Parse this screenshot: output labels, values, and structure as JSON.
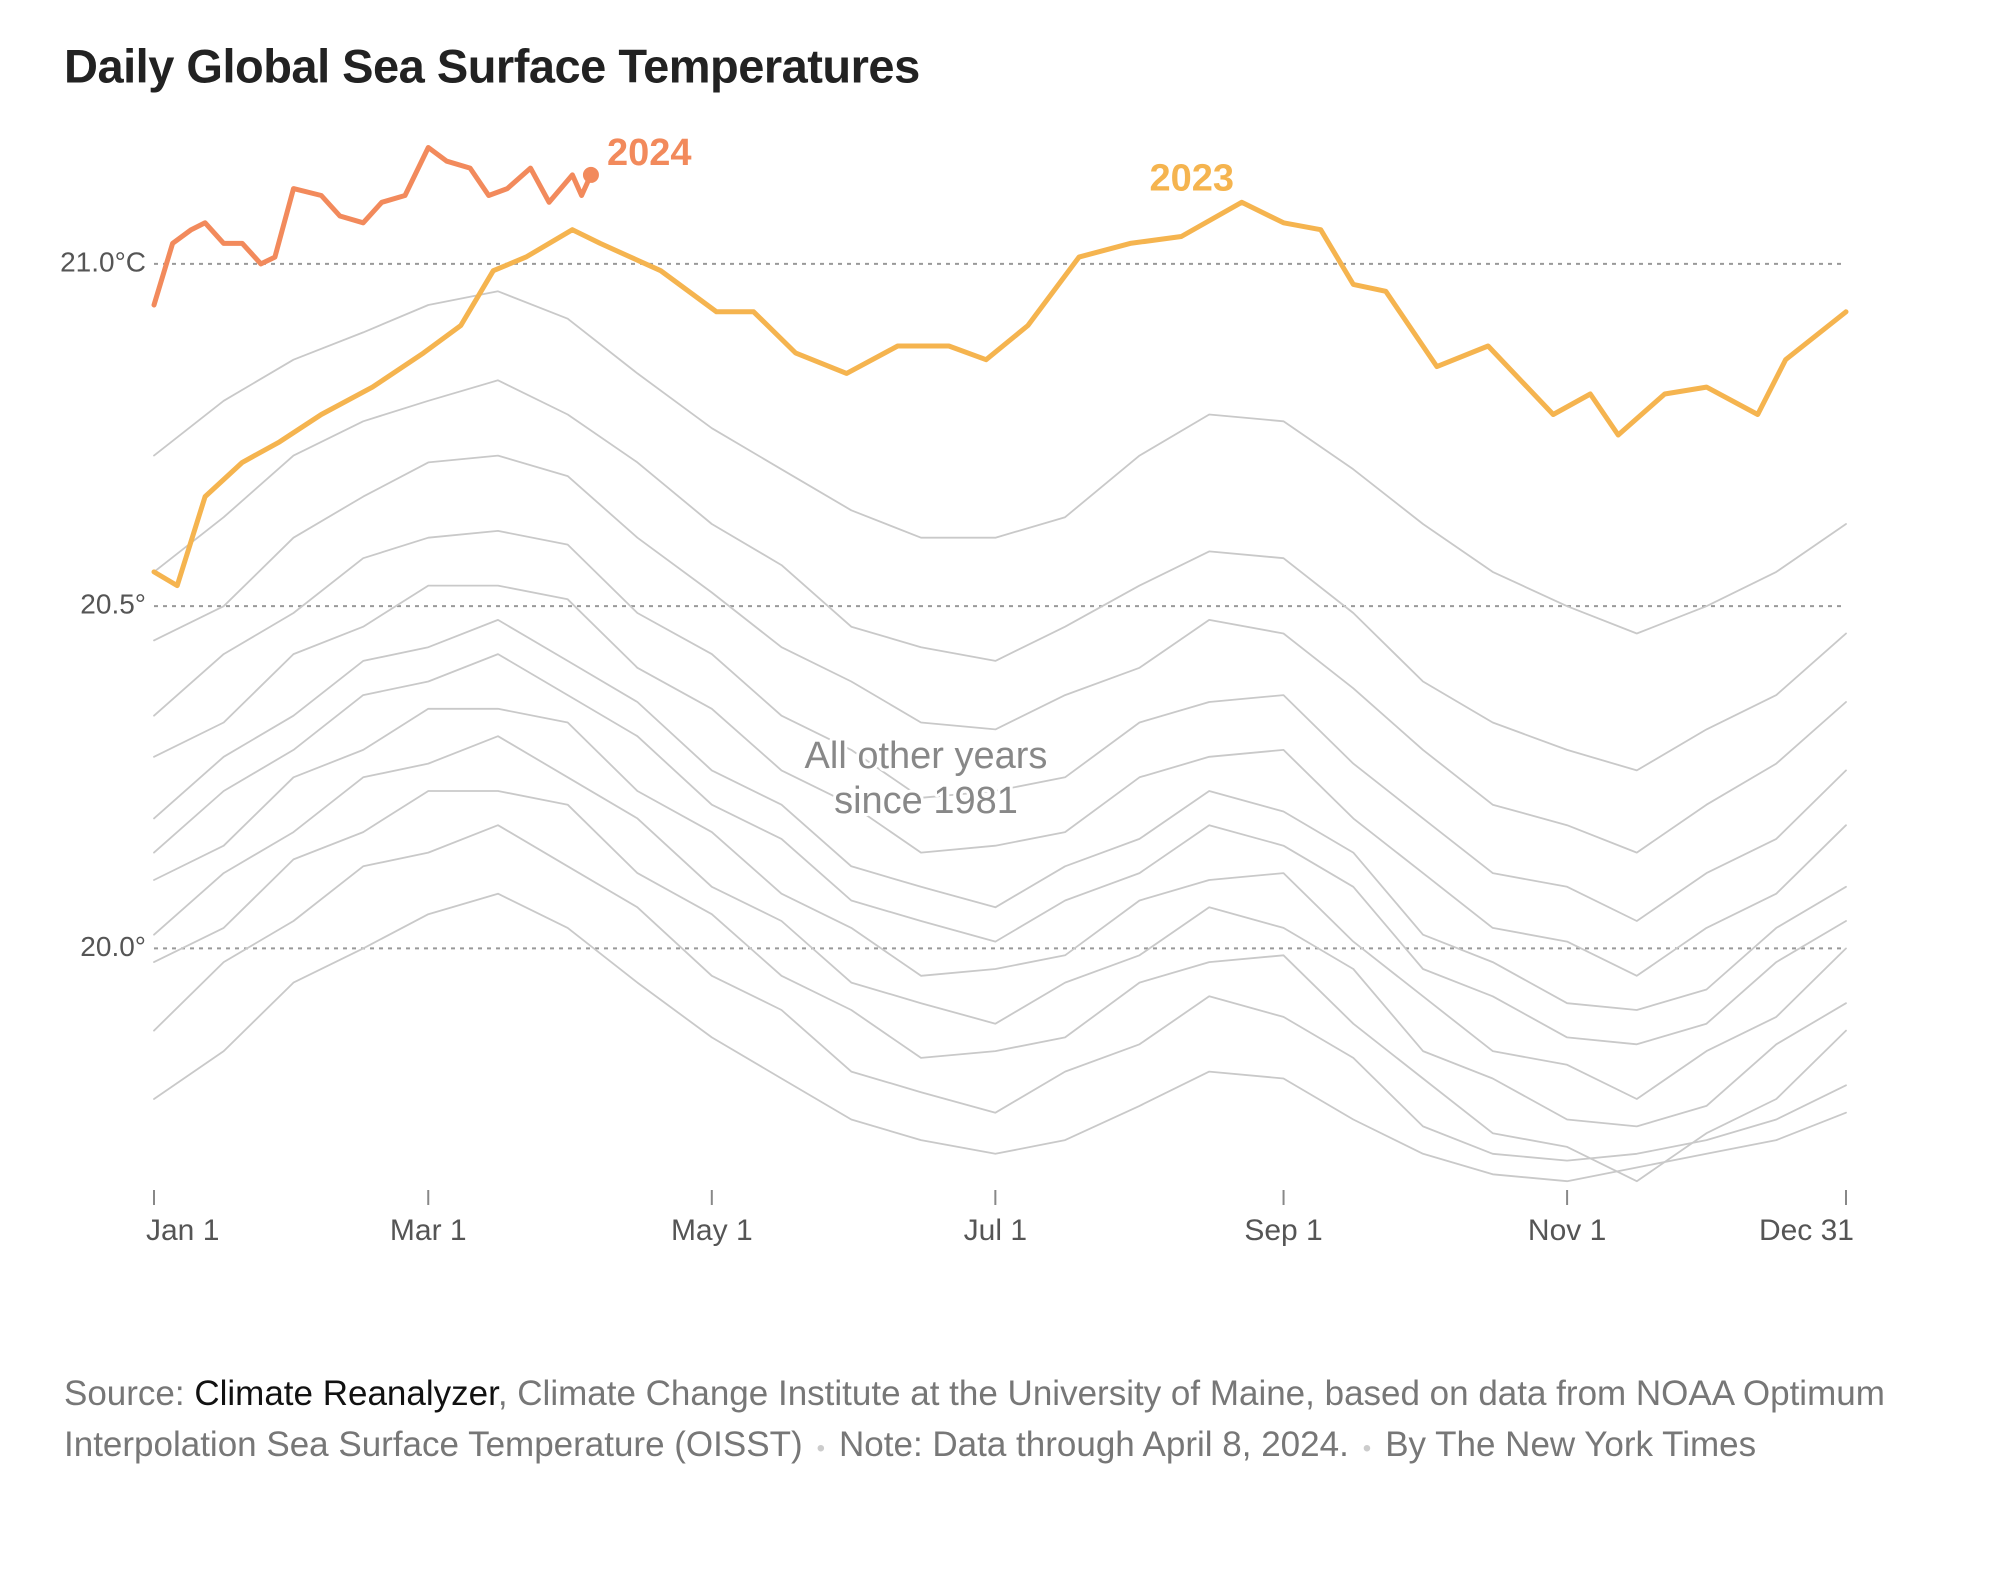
{
  "chart_data": {
    "type": "line",
    "title": "Daily Global Sea Surface Temperatures",
    "annotation_lines": [
      "All other years",
      "since 1981"
    ],
    "xlim": [
      1,
      365
    ],
    "xticks": [
      {
        "value": 1,
        "label": "Jan 1"
      },
      {
        "value": 60,
        "label": "Mar 1"
      },
      {
        "value": 121,
        "label": "May 1"
      },
      {
        "value": 182,
        "label": "Jul 1"
      },
      {
        "value": 244,
        "label": "Sep 1"
      },
      {
        "value": 305,
        "label": "Nov 1"
      },
      {
        "value": 365,
        "label": "Dec 31"
      }
    ],
    "ylim": [
      19.65,
      21.2
    ],
    "yticks": [
      {
        "value": 20,
        "label": "20.0°"
      },
      {
        "value": 20.5,
        "label": "20.5°"
      },
      {
        "value": 21,
        "label": "21.0°C"
      }
    ],
    "grid": true,
    "series": [
      {
        "color": "#c9c9c9",
        "x": [
          1,
          16,
          31,
          46,
          60,
          75,
          90,
          105,
          121,
          136,
          151,
          166,
          182,
          197,
          213,
          228,
          244,
          259,
          274,
          289,
          305,
          320,
          335,
          350,
          365
        ],
        "values": [
          20.72,
          20.8,
          20.86,
          20.9,
          20.94,
          20.96,
          20.92,
          20.84,
          20.76,
          20.7,
          20.64,
          20.6,
          20.6,
          20.63,
          20.72,
          20.78,
          20.77,
          20.7,
          20.62,
          20.55,
          20.5,
          20.46,
          20.5,
          20.55,
          20.62
        ]
      },
      {
        "color": "#c9c9c9",
        "x": [
          1,
          16,
          31,
          46,
          60,
          75,
          90,
          105,
          121,
          136,
          151,
          166,
          182,
          197,
          213,
          228,
          244,
          259,
          274,
          289,
          305,
          320,
          335,
          350,
          365
        ],
        "values": [
          20.55,
          20.63,
          20.72,
          20.77,
          20.8,
          20.83,
          20.78,
          20.71,
          20.62,
          20.56,
          20.47,
          20.44,
          20.42,
          20.47,
          20.53,
          20.58,
          20.57,
          20.49,
          20.39,
          20.33,
          20.29,
          20.26,
          20.32,
          20.37,
          20.46
        ]
      },
      {
        "color": "#c9c9c9",
        "x": [
          1,
          16,
          31,
          46,
          60,
          75,
          90,
          105,
          121,
          136,
          151,
          166,
          182,
          197,
          213,
          228,
          244,
          259,
          274,
          289,
          305,
          320,
          335,
          350,
          365
        ],
        "values": [
          20.45,
          20.5,
          20.6,
          20.66,
          20.71,
          20.72,
          20.69,
          20.6,
          20.52,
          20.44,
          20.39,
          20.33,
          20.32,
          20.37,
          20.41,
          20.48,
          20.46,
          20.38,
          20.29,
          20.21,
          20.18,
          20.14,
          20.21,
          20.27,
          20.36
        ]
      },
      {
        "color": "#c9c9c9",
        "x": [
          1,
          16,
          31,
          46,
          60,
          75,
          90,
          105,
          121,
          136,
          151,
          166,
          182,
          197,
          213,
          228,
          244,
          259,
          274,
          289,
          305,
          320,
          335,
          350,
          365
        ],
        "values": [
          20.34,
          20.43,
          20.49,
          20.57,
          20.6,
          20.61,
          20.59,
          20.49,
          20.43,
          20.34,
          20.29,
          20.22,
          20.23,
          20.25,
          20.33,
          20.36,
          20.37,
          20.27,
          20.19,
          20.11,
          20.09,
          20.04,
          20.11,
          20.16,
          20.26
        ]
      },
      {
        "color": "#c9c9c9",
        "x": [
          1,
          16,
          31,
          46,
          60,
          75,
          90,
          105,
          121,
          136,
          151,
          166,
          182,
          197,
          213,
          228,
          244,
          259,
          274,
          289,
          305,
          320,
          335,
          350,
          365
        ],
        "values": [
          20.28,
          20.33,
          20.43,
          20.47,
          20.53,
          20.53,
          20.51,
          20.41,
          20.35,
          20.26,
          20.21,
          20.14,
          20.15,
          20.17,
          20.25,
          20.28,
          20.29,
          20.19,
          20.11,
          20.03,
          20.01,
          19.96,
          20.03,
          20.08,
          20.18
        ]
      },
      {
        "color": "#c9c9c9",
        "x": [
          1,
          16,
          31,
          46,
          60,
          75,
          90,
          105,
          121,
          136,
          151,
          166,
          182,
          197,
          213,
          228,
          244,
          259,
          274,
          289,
          305,
          320,
          335,
          350,
          365
        ],
        "values": [
          20.19,
          20.28,
          20.34,
          20.42,
          20.44,
          20.48,
          20.42,
          20.36,
          20.26,
          20.21,
          20.12,
          20.09,
          20.06,
          20.12,
          20.16,
          20.23,
          20.2,
          20.14,
          20.02,
          19.98,
          19.92,
          19.91,
          19.94,
          20.03,
          20.09
        ]
      },
      {
        "color": "#c9c9c9",
        "x": [
          1,
          16,
          31,
          46,
          60,
          75,
          90,
          105,
          121,
          136,
          151,
          166,
          182,
          197,
          213,
          228,
          244,
          259,
          274,
          289,
          305,
          320,
          335,
          350,
          365
        ],
        "values": [
          20.14,
          20.23,
          20.29,
          20.37,
          20.39,
          20.43,
          20.37,
          20.31,
          20.21,
          20.16,
          20.07,
          20.04,
          20.01,
          20.07,
          20.11,
          20.18,
          20.15,
          20.09,
          19.97,
          19.93,
          19.87,
          19.86,
          19.89,
          19.98,
          20.04
        ]
      },
      {
        "color": "#c9c9c9",
        "x": [
          1,
          16,
          31,
          46,
          60,
          75,
          90,
          105,
          121,
          136,
          151,
          166,
          182,
          197,
          213,
          228,
          244,
          259,
          274,
          289,
          305,
          320,
          335,
          350,
          365
        ],
        "values": [
          20.1,
          20.15,
          20.25,
          20.29,
          20.35,
          20.35,
          20.33,
          20.23,
          20.17,
          20.08,
          20.03,
          19.96,
          19.97,
          19.99,
          20.07,
          20.1,
          20.11,
          20.01,
          19.93,
          19.85,
          19.83,
          19.78,
          19.85,
          19.9,
          20.0
        ]
      },
      {
        "color": "#c9c9c9",
        "x": [
          1,
          16,
          31,
          46,
          60,
          75,
          90,
          105,
          121,
          136,
          151,
          166,
          182,
          197,
          213,
          228,
          244,
          259,
          274,
          289,
          305,
          320,
          335,
          350,
          365
        ],
        "values": [
          20.02,
          20.11,
          20.17,
          20.25,
          20.27,
          20.31,
          20.25,
          20.19,
          20.09,
          20.04,
          19.95,
          19.92,
          19.89,
          19.95,
          19.99,
          20.06,
          20.03,
          19.97,
          19.85,
          19.81,
          19.75,
          19.74,
          19.77,
          19.86,
          19.92
        ]
      },
      {
        "color": "#c9c9c9",
        "x": [
          1,
          16,
          31,
          46,
          60,
          75,
          90,
          105,
          121,
          136,
          151,
          166,
          182,
          197,
          213,
          228,
          244,
          259,
          274,
          289,
          305,
          320,
          335,
          350,
          365
        ],
        "values": [
          19.98,
          20.03,
          20.13,
          20.17,
          20.23,
          20.23,
          20.21,
          20.11,
          20.05,
          19.96,
          19.91,
          19.84,
          19.85,
          19.87,
          19.95,
          19.98,
          19.99,
          19.89,
          19.81,
          19.73,
          19.71,
          19.66,
          19.73,
          19.78,
          19.88
        ]
      },
      {
        "color": "#c9c9c9",
        "x": [
          1,
          16,
          31,
          46,
          60,
          75,
          90,
          105,
          121,
          136,
          151,
          166,
          182,
          197,
          213,
          228,
          244,
          259,
          274,
          289,
          305,
          320,
          335,
          350,
          365
        ],
        "values": [
          19.88,
          19.98,
          20.04,
          20.12,
          20.14,
          20.18,
          20.12,
          20.06,
          19.96,
          19.91,
          19.82,
          19.79,
          19.76,
          19.82,
          19.86,
          19.93,
          19.9,
          19.84,
          19.74,
          19.7,
          19.69,
          19.7,
          19.72,
          19.75,
          19.8
        ]
      },
      {
        "color": "#c9c9c9",
        "x": [
          1,
          16,
          31,
          46,
          60,
          75,
          90,
          105,
          121,
          136,
          151,
          166,
          182,
          197,
          213,
          228,
          244,
          259,
          274,
          289,
          305,
          320,
          335,
          350,
          365
        ],
        "values": [
          19.78,
          19.85,
          19.95,
          20.0,
          20.05,
          20.08,
          20.03,
          19.95,
          19.87,
          19.81,
          19.75,
          19.72,
          19.7,
          19.72,
          19.77,
          19.82,
          19.81,
          19.75,
          19.7,
          19.67,
          19.66,
          19.68,
          19.7,
          19.72,
          19.76
        ]
      },
      {
        "name": "2023",
        "color": "#f5b44f",
        "x": [
          1,
          6,
          12,
          20,
          28,
          37,
          48,
          59,
          67,
          74,
          81,
          91,
          97,
          110,
          122,
          130,
          139,
          150,
          161,
          172,
          180,
          189,
          200,
          211,
          222,
          235,
          244,
          252,
          259,
          266,
          277,
          288,
          302,
          310,
          316,
          326,
          335,
          346,
          352,
          365
        ],
        "values": [
          20.55,
          20.53,
          20.66,
          20.71,
          20.74,
          20.78,
          20.82,
          20.87,
          20.91,
          20.99,
          21.01,
          21.05,
          21.03,
          20.99,
          20.93,
          20.93,
          20.87,
          20.84,
          20.88,
          20.88,
          20.86,
          20.91,
          21.01,
          21.03,
          21.04,
          21.09,
          21.06,
          21.05,
          20.97,
          20.96,
          20.85,
          20.88,
          20.78,
          20.81,
          20.75,
          20.81,
          20.82,
          20.78,
          20.86,
          20.93
        ]
      },
      {
        "name": "2024",
        "color": "#f28a5c",
        "x": [
          1,
          5,
          9,
          12,
          16,
          20,
          24,
          27,
          31,
          37,
          41,
          46,
          50,
          55,
          60,
          64,
          69,
          73,
          77,
          82,
          86,
          91,
          93,
          95
        ],
        "values": [
          20.94,
          21.03,
          21.05,
          21.06,
          21.03,
          21.03,
          21.0,
          21.01,
          21.11,
          21.1,
          21.07,
          21.06,
          21.09,
          21.1,
          21.17,
          21.15,
          21.14,
          21.1,
          21.11,
          21.14,
          21.09,
          21.13,
          21.1,
          21.13
        ]
      }
    ],
    "source_label": "Source:",
    "source_link": "Climate Reanalyzer",
    "source_text": ", Climate Change Institute at the University of Maine, based on data from NOAA Optimum Interpolation Sea Surface Temperature (OISST)",
    "note": "Note: Data through April 8, 2024.",
    "credit": "By The New York Times"
  }
}
